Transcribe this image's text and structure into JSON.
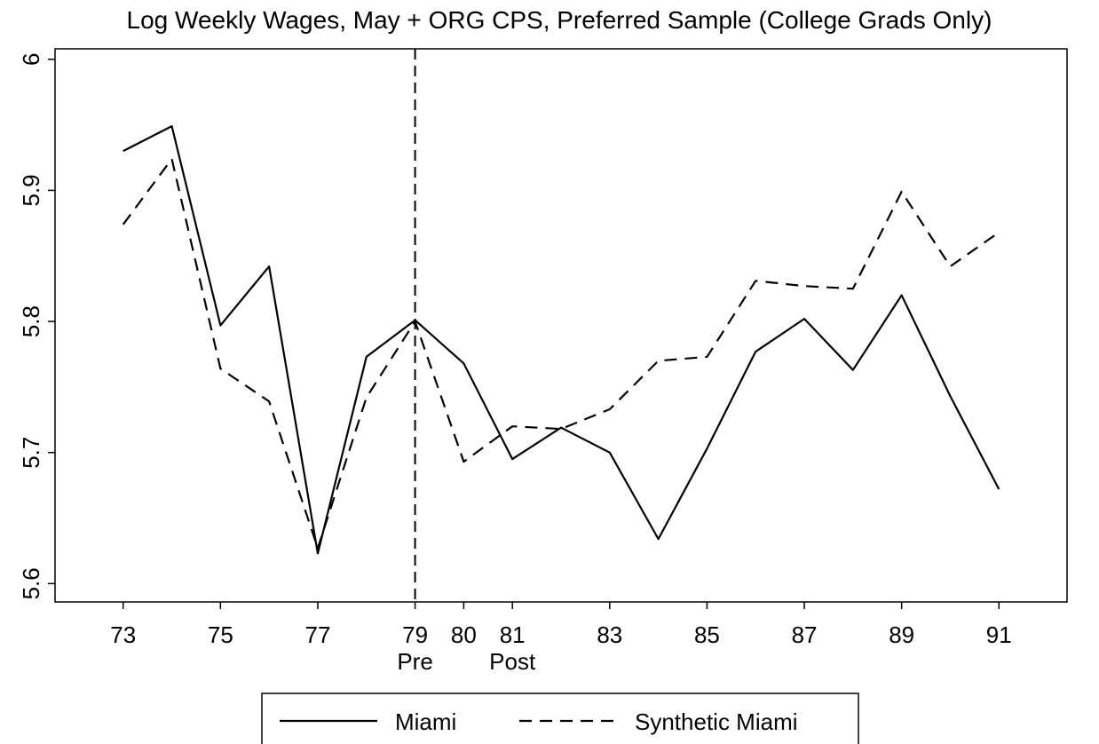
{
  "chart_data": {
    "type": "line",
    "title": "Log Weekly Wages, May + ORG CPS, Preferred Sample (College Grads Only)",
    "x": [
      73,
      74,
      75,
      76,
      77,
      78,
      79,
      80,
      81,
      82,
      83,
      84,
      85,
      86,
      87,
      88,
      89,
      90,
      91
    ],
    "series": [
      {
        "name": "Miami",
        "color": "#000000",
        "dash": "solid",
        "values": [
          5.93,
          5.949,
          5.797,
          5.842,
          5.623,
          5.773,
          5.801,
          5.768,
          5.695,
          5.719,
          5.7,
          5.634,
          5.703,
          5.777,
          5.802,
          5.763,
          5.82,
          5.743,
          5.672
        ]
      },
      {
        "name": "Synthetic Miami",
        "color": "#000000",
        "dash": "dashed",
        "values": [
          5.874,
          5.924,
          5.764,
          5.739,
          5.627,
          5.742,
          5.8,
          5.693,
          5.72,
          5.718,
          5.733,
          5.77,
          5.773,
          5.831,
          5.827,
          5.825,
          5.899,
          5.842,
          5.868
        ]
      }
    ],
    "xlim": [
      71.6,
      92.4
    ],
    "xticks": [
      73,
      75,
      77,
      79,
      80,
      81,
      83,
      85,
      87,
      89,
      91
    ],
    "ylim": [
      5.586,
      6.008
    ],
    "yticks": [
      5.6,
      5.7,
      5.8,
      5.9,
      6
    ],
    "vline": 79,
    "x_annotations": [
      {
        "x": 79,
        "label": "Pre"
      },
      {
        "x": 81,
        "label": "Post"
      }
    ],
    "legend": "bottom"
  }
}
